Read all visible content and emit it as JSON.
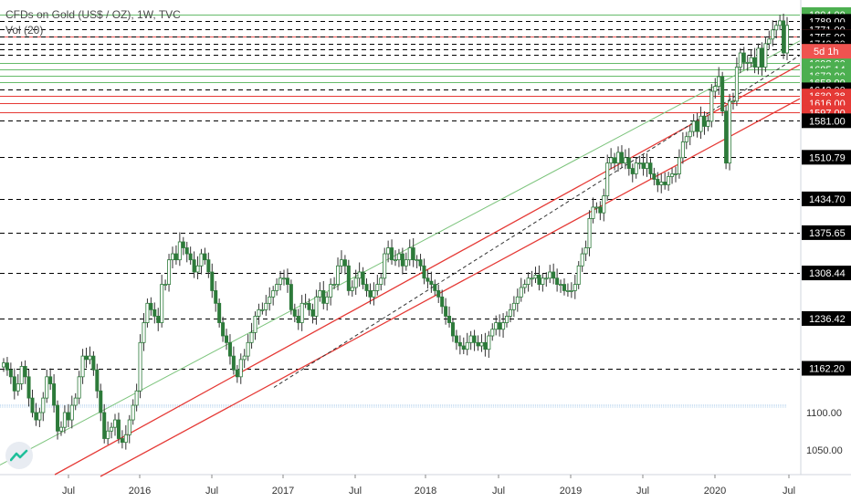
{
  "legend": {
    "title": "CFDs on Gold (US$ / OZ), 1W, TVC",
    "indicator": "Vol (20)"
  },
  "chart_data": {
    "type": "candlestick",
    "yscale": "log",
    "ylim": [
      1027,
      1810
    ],
    "x_tick_labels": [
      "Jul",
      "2016",
      "Jul",
      "2017",
      "Jul",
      "2018",
      "Jul",
      "2019",
      "Jul",
      "2020",
      "Jul"
    ],
    "y_tick_labels_plain": [
      "1100.00",
      "1050.00"
    ],
    "price_tags": [
      {
        "label": "1804.00",
        "value": 1804.0,
        "color": "#4caf50"
      },
      {
        "label": "1789.00",
        "value": 1789.0,
        "color": "#000000"
      },
      {
        "label": "1771.00",
        "value": 1771.0,
        "color": "#000000"
      },
      {
        "label": "1755.20",
        "value": 1755.2,
        "color": "#ef5350"
      },
      {
        "label": "1755.00",
        "value": 1755.0,
        "color": "#000000"
      },
      {
        "label": "1740.00",
        "value": 1740.0,
        "color": "#000000"
      },
      {
        "label": "1727.00",
        "value": 1727.0,
        "color": "#000000"
      },
      {
        "label": "1716.00",
        "value": 1716.0,
        "color": "#000000"
      },
      {
        "label": "1698.00",
        "value": 1698.0,
        "color": "#4caf50"
      },
      {
        "label": "1685.14",
        "value": 1685.14,
        "color": "#4caf50"
      },
      {
        "label": "1672.00",
        "value": 1672.0,
        "color": "#4caf50"
      },
      {
        "label": "1658.00",
        "value": 1658.0,
        "color": "#4caf50"
      },
      {
        "label": "1643.00",
        "value": 1643.0,
        "color": "#000000"
      },
      {
        "label": "1630.38",
        "value": 1630.38,
        "color": "#e53935"
      },
      {
        "label": "1616.00",
        "value": 1616.0,
        "color": "#e53935"
      },
      {
        "label": "1597.00",
        "value": 1597.0,
        "color": "#e53935"
      },
      {
        "label": "1581.00",
        "value": 1581.0,
        "color": "#000000"
      },
      {
        "label": "1510.79",
        "value": 1510.79,
        "color": "#000000"
      },
      {
        "label": "1434.70",
        "value": 1434.7,
        "color": "#000000"
      },
      {
        "label": "1375.65",
        "value": 1375.65,
        "color": "#000000"
      },
      {
        "label": "1308.44",
        "value": 1308.44,
        "color": "#000000"
      },
      {
        "label": "1236.42",
        "value": 1236.42,
        "color": "#000000"
      },
      {
        "label": "1162.20",
        "value": 1162.2,
        "color": "#000000"
      }
    ],
    "countdown_label": "5d 1h",
    "weekly_close_approx": [
      1170,
      1160,
      1150,
      1130,
      1140,
      1165,
      1150,
      1120,
      1100,
      1090,
      1100,
      1120,
      1150,
      1140,
      1110,
      1075,
      1080,
      1100,
      1090,
      1110,
      1120,
      1150,
      1180,
      1175,
      1180,
      1160,
      1130,
      1100,
      1065,
      1075,
      1080,
      1090,
      1065,
      1060,
      1070,
      1090,
      1110,
      1130,
      1200,
      1230,
      1260,
      1250,
      1240,
      1230,
      1290,
      1290,
      1330,
      1340,
      1330,
      1360,
      1350,
      1340,
      1330,
      1310,
      1320,
      1340,
      1330,
      1310,
      1280,
      1260,
      1230,
      1210,
      1200,
      1180,
      1160,
      1150,
      1175,
      1180,
      1200,
      1215,
      1240,
      1250,
      1250,
      1260,
      1270,
      1280,
      1290,
      1300,
      1300,
      1290,
      1250,
      1240,
      1230,
      1260,
      1260,
      1250,
      1240,
      1270,
      1280,
      1260,
      1270,
      1290,
      1290,
      1320,
      1330,
      1320,
      1280,
      1285,
      1300,
      1310,
      1290,
      1280,
      1270,
      1280,
      1290,
      1300,
      1340,
      1350,
      1330,
      1330,
      1340,
      1320,
      1330,
      1350,
      1330,
      1330,
      1320,
      1300,
      1295,
      1290,
      1280,
      1270,
      1255,
      1240,
      1230,
      1210,
      1200,
      1195,
      1190,
      1200,
      1210,
      1200,
      1195,
      1200,
      1190,
      1210,
      1220,
      1230,
      1220,
      1230,
      1240,
      1250,
      1260,
      1270,
      1285,
      1290,
      1300,
      1300,
      1305,
      1290,
      1300,
      1300,
      1310,
      1300,
      1290,
      1290,
      1280,
      1280,
      1280,
      1290,
      1320,
      1340,
      1350,
      1400,
      1420,
      1420,
      1410,
      1440,
      1500,
      1510,
      1500,
      1520,
      1500,
      1510,
      1490,
      1480,
      1500,
      1500,
      1490,
      1500,
      1480,
      1470,
      1460,
      1465,
      1460,
      1475,
      1480,
      1480,
      1510,
      1540,
      1550,
      1560,
      1580,
      1560,
      1590,
      1570,
      1580,
      1640,
      1650,
      1670,
      1600,
      1500,
      1620,
      1620,
      1690,
      1720,
      1700,
      1700,
      1710,
      1690,
      1730,
      1690,
      1740,
      1750,
      1770,
      1780,
      1790,
      1720,
      1780
    ]
  }
}
